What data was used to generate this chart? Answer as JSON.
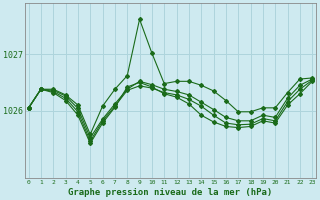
{
  "title": "Graphe pression niveau de la mer (hPa)",
  "background_color": "#ceeaf0",
  "grid_color": "#aed4dc",
  "line_color": "#1a6b1a",
  "x_ticks": [
    0,
    1,
    2,
    3,
    4,
    5,
    6,
    7,
    8,
    9,
    10,
    11,
    12,
    13,
    14,
    15,
    16,
    17,
    18,
    19,
    20,
    21,
    22,
    23
  ],
  "y_ticks": [
    1026,
    1027
  ],
  "ylim": [
    1024.8,
    1027.9
  ],
  "xlim": [
    -0.3,
    23.3
  ],
  "series": [
    [
      1026.05,
      1026.38,
      1026.38,
      1026.28,
      1026.1,
      1025.58,
      1026.08,
      1026.38,
      1026.62,
      1027.62,
      1027.02,
      1026.48,
      1026.52,
      1026.52,
      1026.45,
      1026.35,
      1026.18,
      1025.98,
      1025.98,
      1026.05,
      1026.05,
      1026.32,
      1026.56,
      1026.58
    ],
    [
      1026.05,
      1026.38,
      1026.36,
      1026.26,
      1026.04,
      1025.52,
      1025.85,
      1026.12,
      1026.38,
      1026.52,
      1026.46,
      1026.38,
      1026.34,
      1026.28,
      1026.15,
      1026.02,
      1025.88,
      1025.82,
      1025.82,
      1025.92,
      1025.88,
      1026.22,
      1026.45,
      1026.56
    ],
    [
      1026.05,
      1026.38,
      1026.34,
      1026.22,
      1025.98,
      1025.46,
      1025.82,
      1026.08,
      1026.36,
      1026.44,
      1026.4,
      1026.32,
      1026.28,
      1026.2,
      1026.08,
      1025.92,
      1025.78,
      1025.75,
      1025.76,
      1025.86,
      1025.82,
      1026.16,
      1026.38,
      1026.54
    ],
    [
      1026.04,
      1026.38,
      1026.32,
      1026.18,
      1025.92,
      1025.42,
      1025.78,
      1026.06,
      1026.42,
      1026.5,
      1026.42,
      1026.3,
      1026.24,
      1026.12,
      1025.92,
      1025.8,
      1025.72,
      1025.7,
      1025.72,
      1025.82,
      1025.78,
      1026.1,
      1026.3,
      1026.52
    ]
  ]
}
